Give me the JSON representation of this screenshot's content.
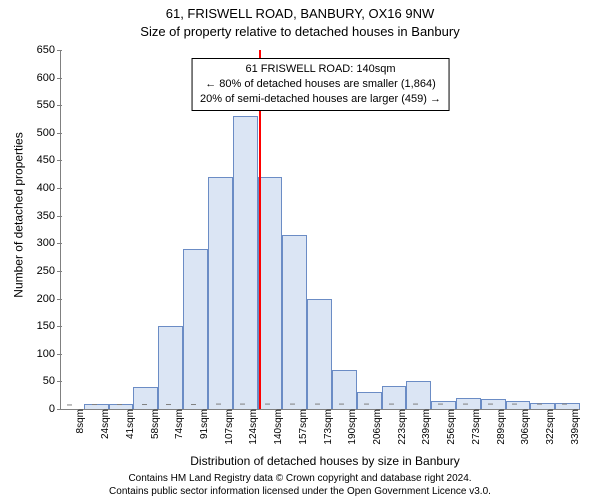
{
  "header": {
    "address": "61, FRISWELL ROAD, BANBURY, OX16 9NW",
    "subtitle": "Size of property relative to detached houses in Banbury"
  },
  "chart": {
    "type": "histogram",
    "ylabel": "Number of detached properties",
    "xlabel": "Distribution of detached houses by size in Banbury",
    "ylim": [
      0,
      650
    ],
    "ytick_step": 50,
    "yticks": [
      0,
      50,
      100,
      150,
      200,
      250,
      300,
      350,
      400,
      450,
      500,
      550,
      600,
      650
    ],
    "xticks": [
      "8sqm",
      "24sqm",
      "41sqm",
      "58sqm",
      "74sqm",
      "91sqm",
      "107sqm",
      "124sqm",
      "140sqm",
      "157sqm",
      "173sqm",
      "190sqm",
      "206sqm",
      "223sqm",
      "239sqm",
      "256sqm",
      "273sqm",
      "289sqm",
      "306sqm",
      "322sqm",
      "339sqm"
    ],
    "values": [
      0,
      9,
      9,
      40,
      150,
      290,
      420,
      530,
      420,
      315,
      200,
      70,
      30,
      42,
      50,
      15,
      20,
      18,
      15,
      10,
      10
    ],
    "bar_fill": "#dbe5f4",
    "bar_border": "#6b8cc5",
    "axis_color": "#808080",
    "background_color": "#ffffff",
    "marker": {
      "bin_index": 8,
      "color": "#ff0000"
    },
    "annotation": {
      "line1": "61 FRISWELL ROAD: 140sqm",
      "line2": "← 80% of detached houses are smaller (1,864)",
      "line3": "20% of semi-detached houses are larger (459) →",
      "border_color": "#000000",
      "background": "#ffffff",
      "fontsize": 11
    }
  },
  "attribution": {
    "line1": "Contains HM Land Registry data © Crown copyright and database right 2024.",
    "line2": "Contains public sector information licensed under the Open Government Licence v3.0."
  }
}
